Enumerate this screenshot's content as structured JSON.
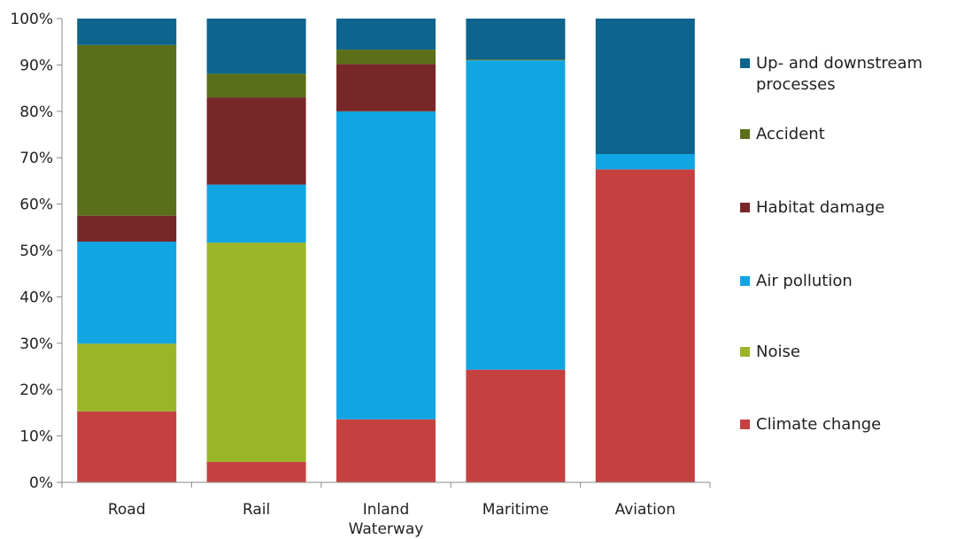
{
  "chart_data": {
    "type": "bar",
    "stacked": true,
    "percent": true,
    "categories": [
      "Road",
      "Rail",
      "Inland Waterway",
      "Maritime",
      "Aviation"
    ],
    "category_lines": [
      [
        "Road"
      ],
      [
        "Rail"
      ],
      [
        "Inland",
        "Waterway"
      ],
      [
        "Maritime"
      ],
      [
        "Aviation"
      ]
    ],
    "ylim": [
      0,
      100
    ],
    "yticks": [
      0,
      10,
      20,
      30,
      40,
      50,
      60,
      70,
      80,
      90,
      100
    ],
    "ytick_labels": [
      "0%",
      "10%",
      "20%",
      "30%",
      "40%",
      "50%",
      "60%",
      "70%",
      "80%",
      "90%",
      "100%"
    ],
    "grid": false,
    "legend_position": "right",
    "series": [
      {
        "name": "Climate change",
        "color": "#c54140",
        "values": [
          15.3,
          4.4,
          13.6,
          24.3,
          67.5
        ]
      },
      {
        "name": "Noise",
        "color": "#9bb528",
        "values": [
          14.6,
          47.3,
          0,
          0,
          0
        ]
      },
      {
        "name": "Air pollution",
        "color": "#12a5e4",
        "values": [
          22.0,
          12.5,
          66.4,
          66.7,
          3.3
        ]
      },
      {
        "name": "Habitat damage",
        "color": "#782728",
        "values": [
          5.6,
          18.8,
          10.2,
          0,
          0
        ]
      },
      {
        "name": "Accident",
        "color": "#5b6e19",
        "values": [
          36.8,
          5.1,
          3.1,
          0.2,
          0
        ]
      },
      {
        "name": "Up- and downstream processes",
        "color": "#0d648c",
        "values": [
          5.7,
          11.9,
          6.7,
          8.8,
          29.2
        ]
      }
    ],
    "legend_entries": [
      {
        "lines": [
          "Up- and downstream",
          "processes"
        ],
        "color": "#0d648c"
      },
      {
        "lines": [
          "Accident"
        ],
        "color": "#5b6e19"
      },
      {
        "lines": [
          "Habitat damage"
        ],
        "color": "#782728"
      },
      {
        "lines": [
          "Air pollution"
        ],
        "color": "#12a5e4"
      },
      {
        "lines": [
          "Noise"
        ],
        "color": "#9bb528"
      },
      {
        "lines": [
          "Climate change"
        ],
        "color": "#c54140"
      }
    ]
  }
}
